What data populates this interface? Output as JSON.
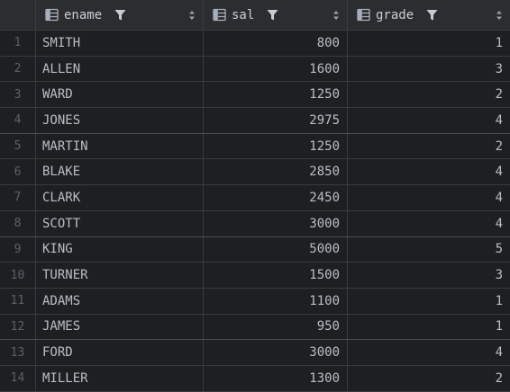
{
  "columns": [
    {
      "key": "ename",
      "label": "ename"
    },
    {
      "key": "sal",
      "label": "sal"
    },
    {
      "key": "grade",
      "label": "grade"
    }
  ],
  "rows": [
    {
      "n": "1",
      "ename": "SMITH",
      "sal": "800",
      "grade": "1"
    },
    {
      "n": "2",
      "ename": "ALLEN",
      "sal": "1600",
      "grade": "3"
    },
    {
      "n": "3",
      "ename": "WARD",
      "sal": "1250",
      "grade": "2"
    },
    {
      "n": "4",
      "ename": "JONES",
      "sal": "2975",
      "grade": "4"
    },
    {
      "n": "5",
      "ename": "MARTIN",
      "sal": "1250",
      "grade": "2"
    },
    {
      "n": "6",
      "ename": "BLAKE",
      "sal": "2850",
      "grade": "4"
    },
    {
      "n": "7",
      "ename": "CLARK",
      "sal": "2450",
      "grade": "4"
    },
    {
      "n": "8",
      "ename": "SCOTT",
      "sal": "3000",
      "grade": "4"
    },
    {
      "n": "9",
      "ename": "KING",
      "sal": "5000",
      "grade": "5"
    },
    {
      "n": "10",
      "ename": "TURNER",
      "sal": "1500",
      "grade": "3"
    },
    {
      "n": "11",
      "ename": "ADAMS",
      "sal": "1100",
      "grade": "1"
    },
    {
      "n": "12",
      "ename": "JAMES",
      "sal": "950",
      "grade": "1"
    },
    {
      "n": "13",
      "ename": "FORD",
      "sal": "3000",
      "grade": "4"
    },
    {
      "n": "14",
      "ename": "MILLER",
      "sal": "1300",
      "grade": "2"
    }
  ],
  "icons": {
    "column_type": "table-column-icon",
    "filter": "filter-icon",
    "sort": "sort-icon"
  },
  "colors": {
    "background": "#1e1f22",
    "header": "#2b2d30",
    "text": "#bcbec4",
    "row_number": "#5d6068",
    "grid_line": "#393b40"
  }
}
